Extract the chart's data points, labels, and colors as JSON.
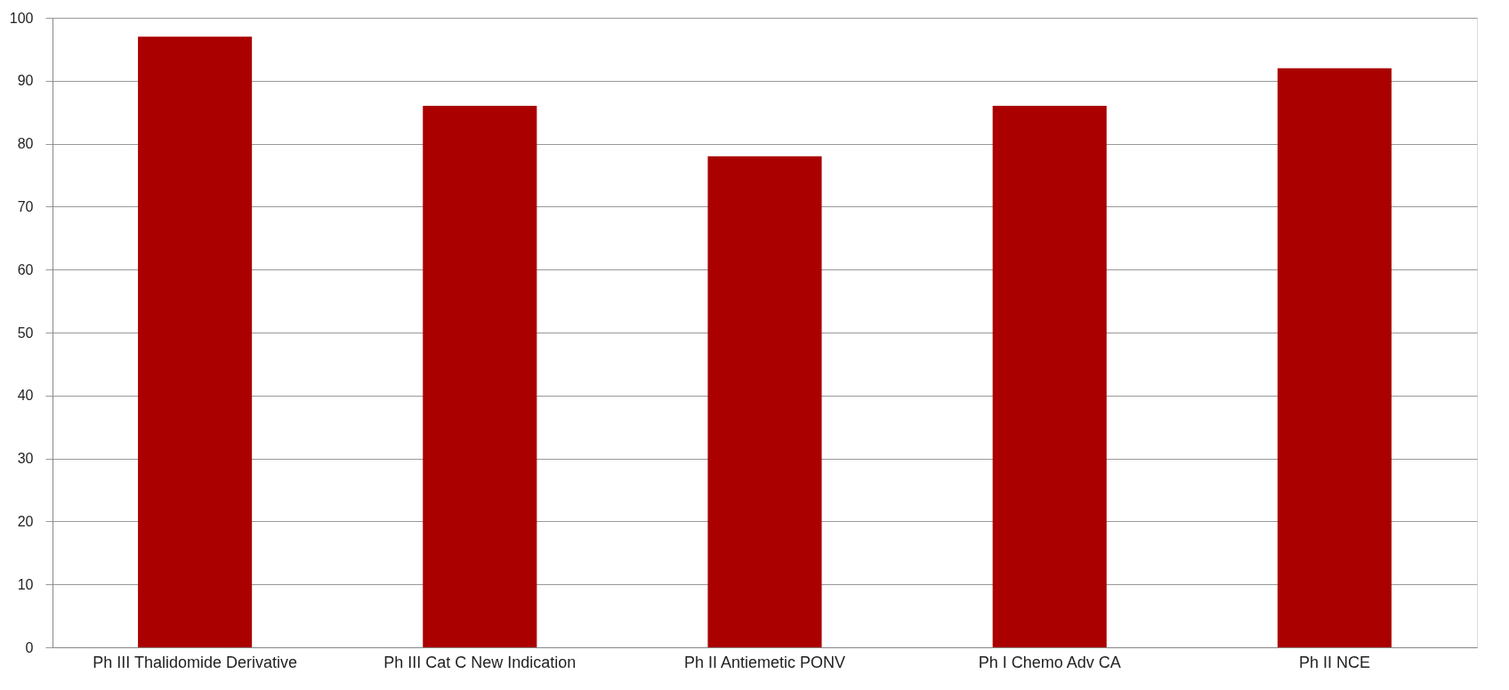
{
  "chart_data": {
    "type": "bar",
    "categories": [
      "Ph III Thalidomide Derivative",
      "Ph III Cat C New Indication",
      "Ph II Antiemetic PONV",
      "Ph I Chemo Adv CA",
      "Ph II NCE"
    ],
    "values": [
      97,
      86,
      78,
      86,
      92
    ],
    "color": "#aa0000",
    "ylim": [
      0,
      100
    ],
    "yticks": [
      0,
      10,
      20,
      30,
      40,
      50,
      60,
      70,
      80,
      90,
      100
    ],
    "grid": "y"
  }
}
